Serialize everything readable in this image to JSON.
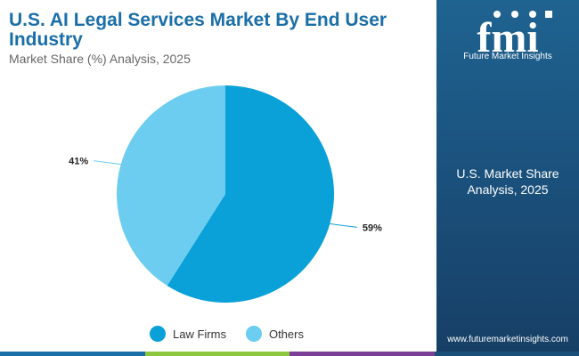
{
  "header": {
    "title": "U.S. AI Legal Services Market By End User Industry",
    "subtitle": "Market Share (%) Analysis, 2025"
  },
  "chart_data": {
    "type": "pie",
    "title": "U.S. AI Legal Services Market By End User Industry",
    "subtitle": "Market Share (%) Analysis, 2025",
    "slices": [
      {
        "name": "Law Firms",
        "value": 59,
        "label": "59%",
        "color": "#0aa0d8"
      },
      {
        "name": "Others",
        "value": 41,
        "label": "41%",
        "color": "#6ccdf0"
      }
    ],
    "legend_position": "bottom"
  },
  "legend": {
    "items": [
      {
        "label": "Law Firms",
        "color": "#0aa0d8"
      },
      {
        "label": "Others",
        "color": "#6ccdf0"
      }
    ]
  },
  "sidebar": {
    "logo_letters": "fmi",
    "logo_text": "Future Market Insights",
    "title_line1": "U.S. Market Share",
    "title_line2": "Analysis, 2025",
    "website": "www.futuremarketinsights.com"
  },
  "colors": {
    "title": "#1a6fa8",
    "sidebar": "#1a4f7a",
    "bottom_bar": [
      "#1a6fa8",
      "#8dc63f",
      "#7b3f98",
      "#1a4f7a"
    ]
  }
}
